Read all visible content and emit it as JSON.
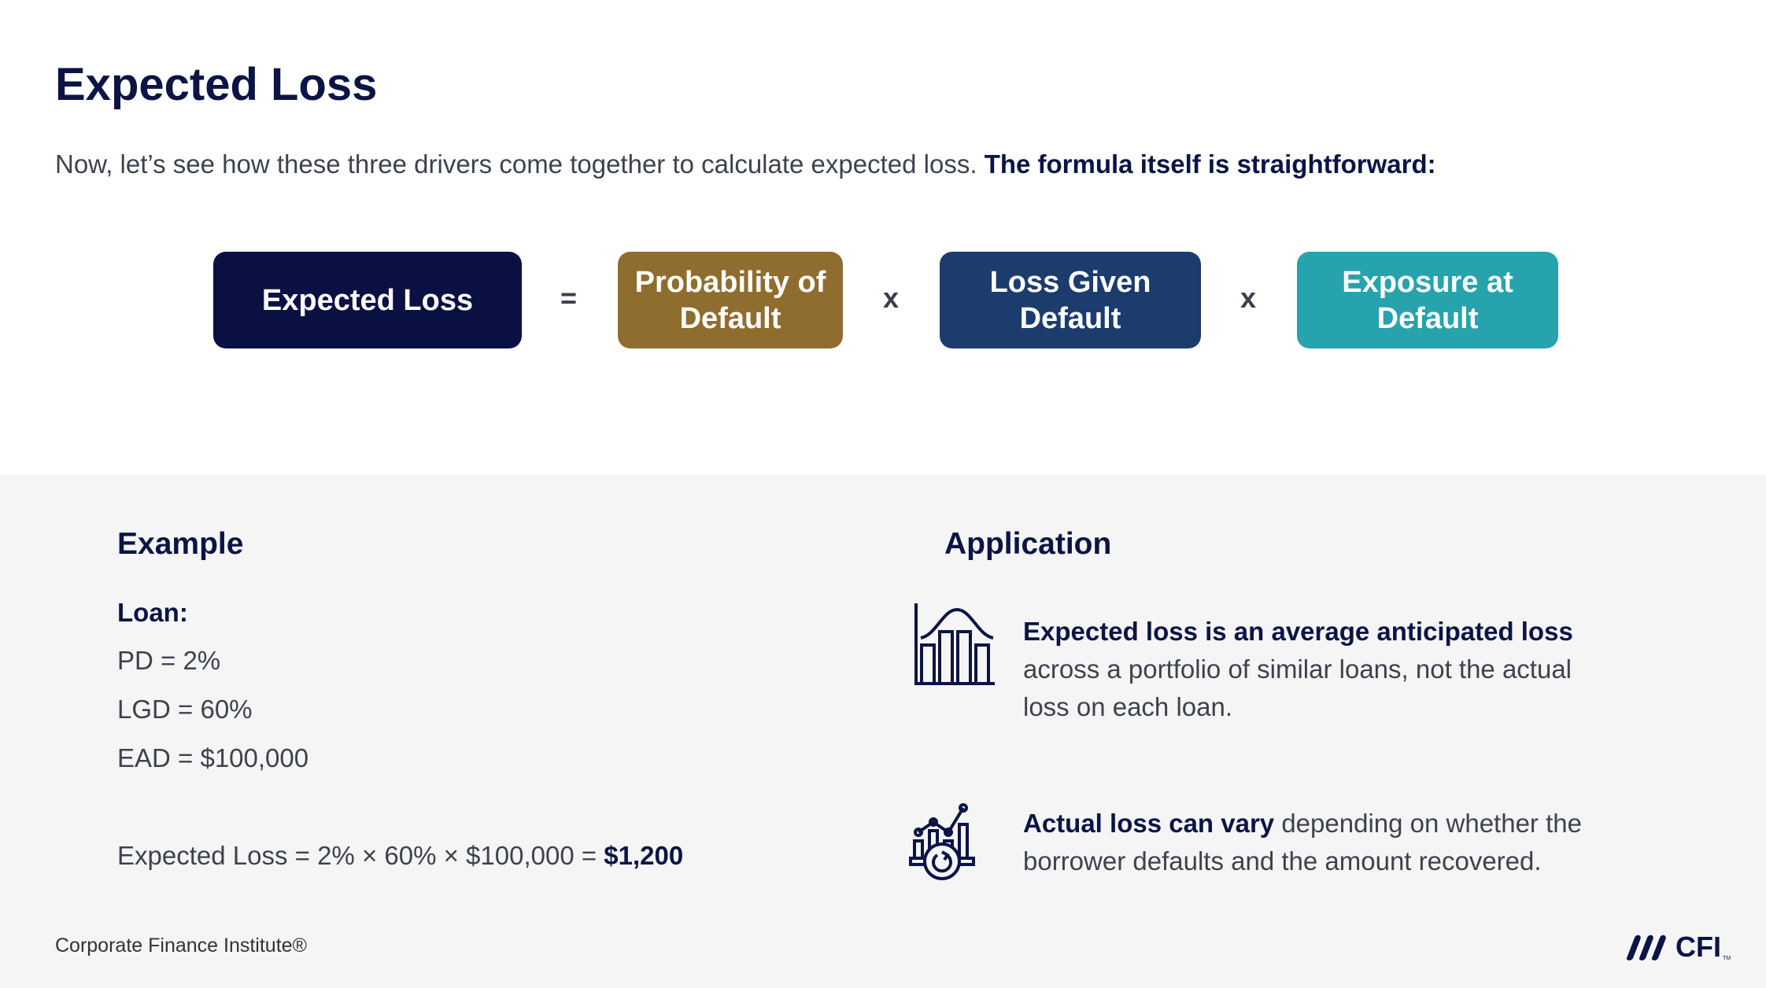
{
  "title": "Expected Loss",
  "intro": {
    "text": "Now, let’s see how these three drivers come together to calculate expected loss. ",
    "bold": "The formula itself is straightforward:"
  },
  "formula": {
    "result": {
      "label": "Expected Loss",
      "color": "#0a1142"
    },
    "equals": "=",
    "times": "x",
    "factors": [
      {
        "label": "Probability of Default",
        "color": "#8f6d2f"
      },
      {
        "label": "Loss Given Default",
        "color": "#1c3c6e"
      },
      {
        "label": "Exposure at Default",
        "color": "#26a3ad"
      }
    ]
  },
  "example": {
    "heading": "Example",
    "loan_label": "Loan:",
    "lines": [
      "PD = 2%",
      "LGD = 60%",
      "EAD = $100,000"
    ],
    "calc": "Expected Loss = 2% × 60% × $100,000 = ",
    "result": "$1,200"
  },
  "application": {
    "heading": "Application",
    "items": [
      {
        "icon": "bell-curve-bar-chart-icon",
        "bold": "Expected loss is an average anticipated loss",
        "text": " across a portfolio of similar loans, not the actual loss on each loan."
      },
      {
        "icon": "chart-refresh-icon",
        "bold": "Actual loss can vary",
        "text": " depending on whether the borrower defaults and the amount recovered."
      }
    ]
  },
  "footer": "Corporate Finance Institute®",
  "logo": {
    "text": "CFI",
    "tm": "TM"
  }
}
